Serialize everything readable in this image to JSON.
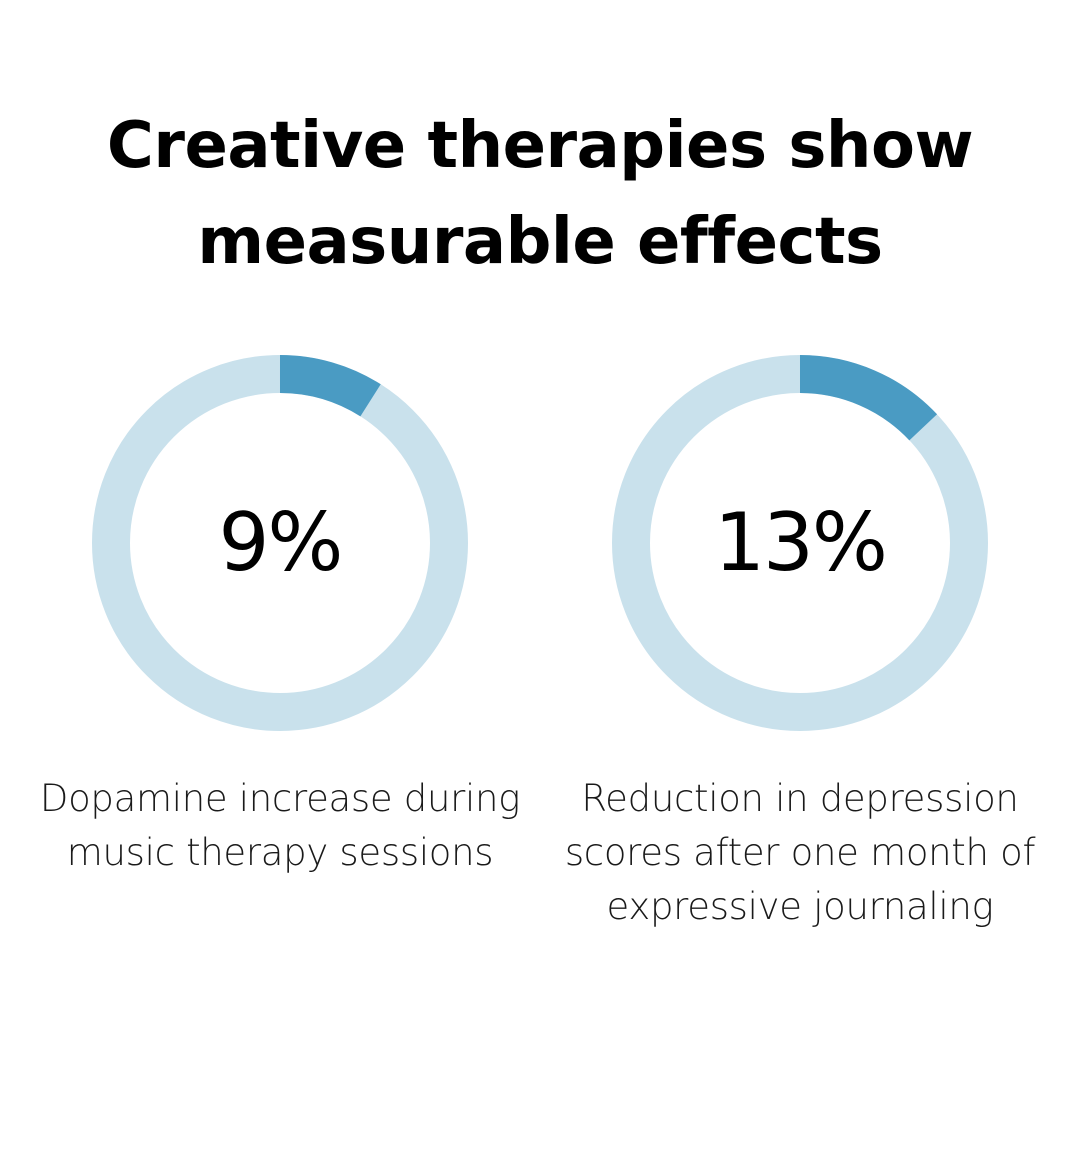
{
  "title": {
    "line1": "Creative therapies show",
    "line2": "measurable effects"
  },
  "colors": {
    "track": "#c9e1ec",
    "fill": "#4a9bc3",
    "text": "#000000"
  },
  "chart_data": [
    {
      "type": "pie",
      "value": 9,
      "max": 100,
      "label": "9%",
      "caption": [
        "Dopamine increase during",
        "music therapy sessions"
      ]
    },
    {
      "type": "pie",
      "value": 13,
      "max": 100,
      "label": "13%",
      "caption": [
        "Reduction in depression",
        "scores after one month of",
        "expressive journaling"
      ]
    }
  ]
}
